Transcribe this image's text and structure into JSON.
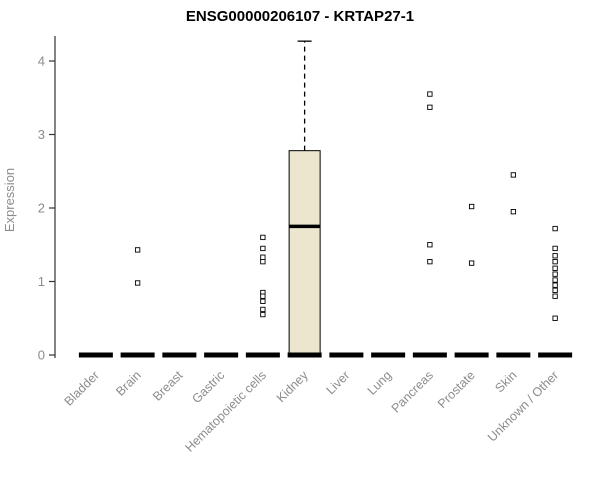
{
  "chart": {
    "title": "ENSG00000206107 - KRTAP27-1",
    "ylabel": "Expression"
  },
  "chart_data": {
    "type": "boxplot",
    "title": "ENSG00000206107 - KRTAP27-1",
    "xlabel": "",
    "ylabel": "Expression",
    "ylim": [
      0,
      4.3
    ],
    "yticks": [
      0,
      1,
      2,
      3,
      4
    ],
    "grid": false,
    "legend": null,
    "categories": [
      "Bladder",
      "Brain",
      "Breast",
      "Gastric",
      "Hematopoietic cells",
      "Kidney",
      "Liver",
      "Lung",
      "Pancreas",
      "Prostate",
      "Skin",
      "Unknown / Other"
    ],
    "baseline_bar_value": 0,
    "boxes": [
      {
        "category": "Kidney",
        "q1": 0,
        "median": 1.75,
        "q3": 2.78,
        "whisker_low": 0,
        "whisker_high": 4.27
      }
    ],
    "outliers": {
      "Bladder": [],
      "Brain": [
        1.43,
        0.98
      ],
      "Breast": [],
      "Gastric": [],
      "Hematopoietic cells": [
        1.6,
        1.45,
        1.33,
        1.27,
        0.85,
        0.8,
        0.73,
        0.62,
        0.55
      ],
      "Kidney": [],
      "Liver": [],
      "Lung": [],
      "Pancreas": [
        3.55,
        3.37,
        1.5,
        1.27
      ],
      "Prostate": [
        2.02,
        1.25
      ],
      "Skin": [
        2.45,
        1.95
      ],
      "Unknown / Other": [
        1.72,
        1.45,
        1.35,
        1.27,
        1.18,
        1.1,
        1.02,
        0.95,
        0.88,
        0.8,
        0.5
      ]
    },
    "colors": {
      "box_fill": "#ece6cf",
      "box_stroke": "#000000",
      "median_line": "#000000",
      "baseline_bar": "#000000",
      "axis_line": "#333333",
      "axis_text": "#8c8c8c",
      "title_text": "#000000",
      "outlier_stroke": "#000000",
      "outlier_fill": "#ffffff"
    }
  }
}
